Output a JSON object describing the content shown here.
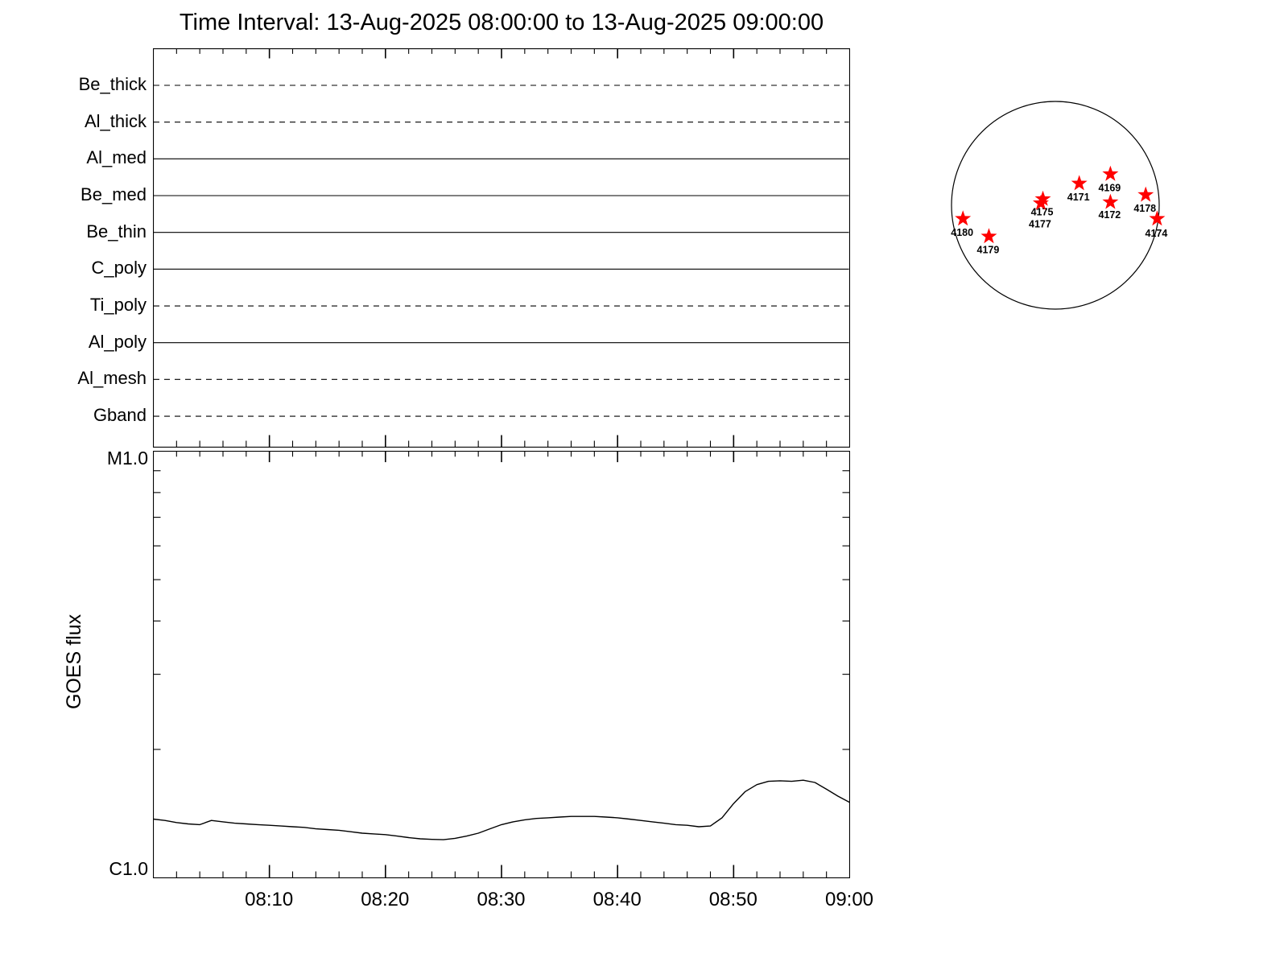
{
  "title": "Time Interval: 13-Aug-2025 08:00:00 to 13-Aug-2025 09:00:00",
  "chart_data": [
    {
      "type": "timeline",
      "categories": [
        "Be_thick",
        "Al_thick",
        "Al_med",
        "Be_med",
        "Be_thin",
        "C_poly",
        "Ti_poly",
        "Al_poly",
        "Al_mesh",
        "Gband"
      ],
      "line_styles": [
        "dashed",
        "dashed",
        "solid",
        "solid",
        "solid",
        "solid",
        "dashed",
        "solid",
        "dashed",
        "dashed"
      ],
      "x_range": [
        "08:00:00",
        "09:00:00"
      ],
      "grid": false
    },
    {
      "type": "line",
      "ylabel": "GOES flux",
      "y_top_label": "M1.0",
      "y_bottom_label": "C1.0",
      "y_scale": "log",
      "ylim_watts_m2": [
        1e-06,
        1e-05
      ],
      "x_tick_labels": [
        "08:10",
        "08:20",
        "08:30",
        "08:40",
        "08:50",
        "09:00"
      ],
      "x_range_minutes": [
        0,
        60
      ],
      "minor_tick_minutes": 2,
      "series": [
        {
          "name": "GOES flux",
          "x_minutes": [
            0,
            1,
            2,
            3,
            4,
            5,
            6,
            7,
            8,
            9,
            10,
            11,
            12,
            13,
            14,
            15,
            16,
            17,
            18,
            19,
            20,
            21,
            22,
            23,
            24,
            25,
            26,
            27,
            28,
            29,
            30,
            31,
            32,
            33,
            34,
            35,
            36,
            37,
            38,
            39,
            40,
            41,
            42,
            43,
            44,
            45,
            46,
            47,
            48,
            49,
            50,
            51,
            52,
            53,
            54,
            55,
            56,
            57,
            58,
            59,
            60
          ],
          "flux_c_units": [
            1.37,
            1.36,
            1.345,
            1.335,
            1.33,
            1.36,
            1.35,
            1.34,
            1.335,
            1.33,
            1.325,
            1.32,
            1.315,
            1.31,
            1.3,
            1.295,
            1.29,
            1.28,
            1.27,
            1.265,
            1.26,
            1.25,
            1.24,
            1.232,
            1.228,
            1.226,
            1.235,
            1.25,
            1.27,
            1.3,
            1.33,
            1.35,
            1.365,
            1.375,
            1.38,
            1.385,
            1.39,
            1.39,
            1.39,
            1.385,
            1.38,
            1.37,
            1.36,
            1.35,
            1.34,
            1.33,
            1.325,
            1.315,
            1.32,
            1.38,
            1.49,
            1.59,
            1.65,
            1.68,
            1.685,
            1.68,
            1.69,
            1.67,
            1.61,
            1.55,
            1.5
          ]
        }
      ]
    },
    {
      "type": "scatter",
      "marker": "star",
      "marker_color": "#ff0000",
      "regions": [
        {
          "noaa": "4169",
          "x": 0.53,
          "y": -0.3,
          "label_dy": 16
        },
        {
          "noaa": "4171",
          "x": 0.23,
          "y": -0.21,
          "label_dy": 16
        },
        {
          "noaa": "4172",
          "x": 0.53,
          "y": -0.03,
          "label_dy": 15
        },
        {
          "noaa": "4174",
          "x": 0.98,
          "y": 0.13,
          "label_dy": 17
        },
        {
          "noaa": "4175",
          "x": -0.12,
          "y": -0.06,
          "label_dy": 15
        },
        {
          "noaa": "4177",
          "x": -0.14,
          "y": -0.02,
          "label_dy": 25
        },
        {
          "noaa": "4178",
          "x": 0.87,
          "y": -0.1,
          "label_dy": 16
        },
        {
          "noaa": "4179",
          "x": -0.64,
          "y": 0.3,
          "label_dy": 16
        },
        {
          "noaa": "4180",
          "x": -0.89,
          "y": 0.13,
          "label_dy": 16
        }
      ]
    }
  ]
}
